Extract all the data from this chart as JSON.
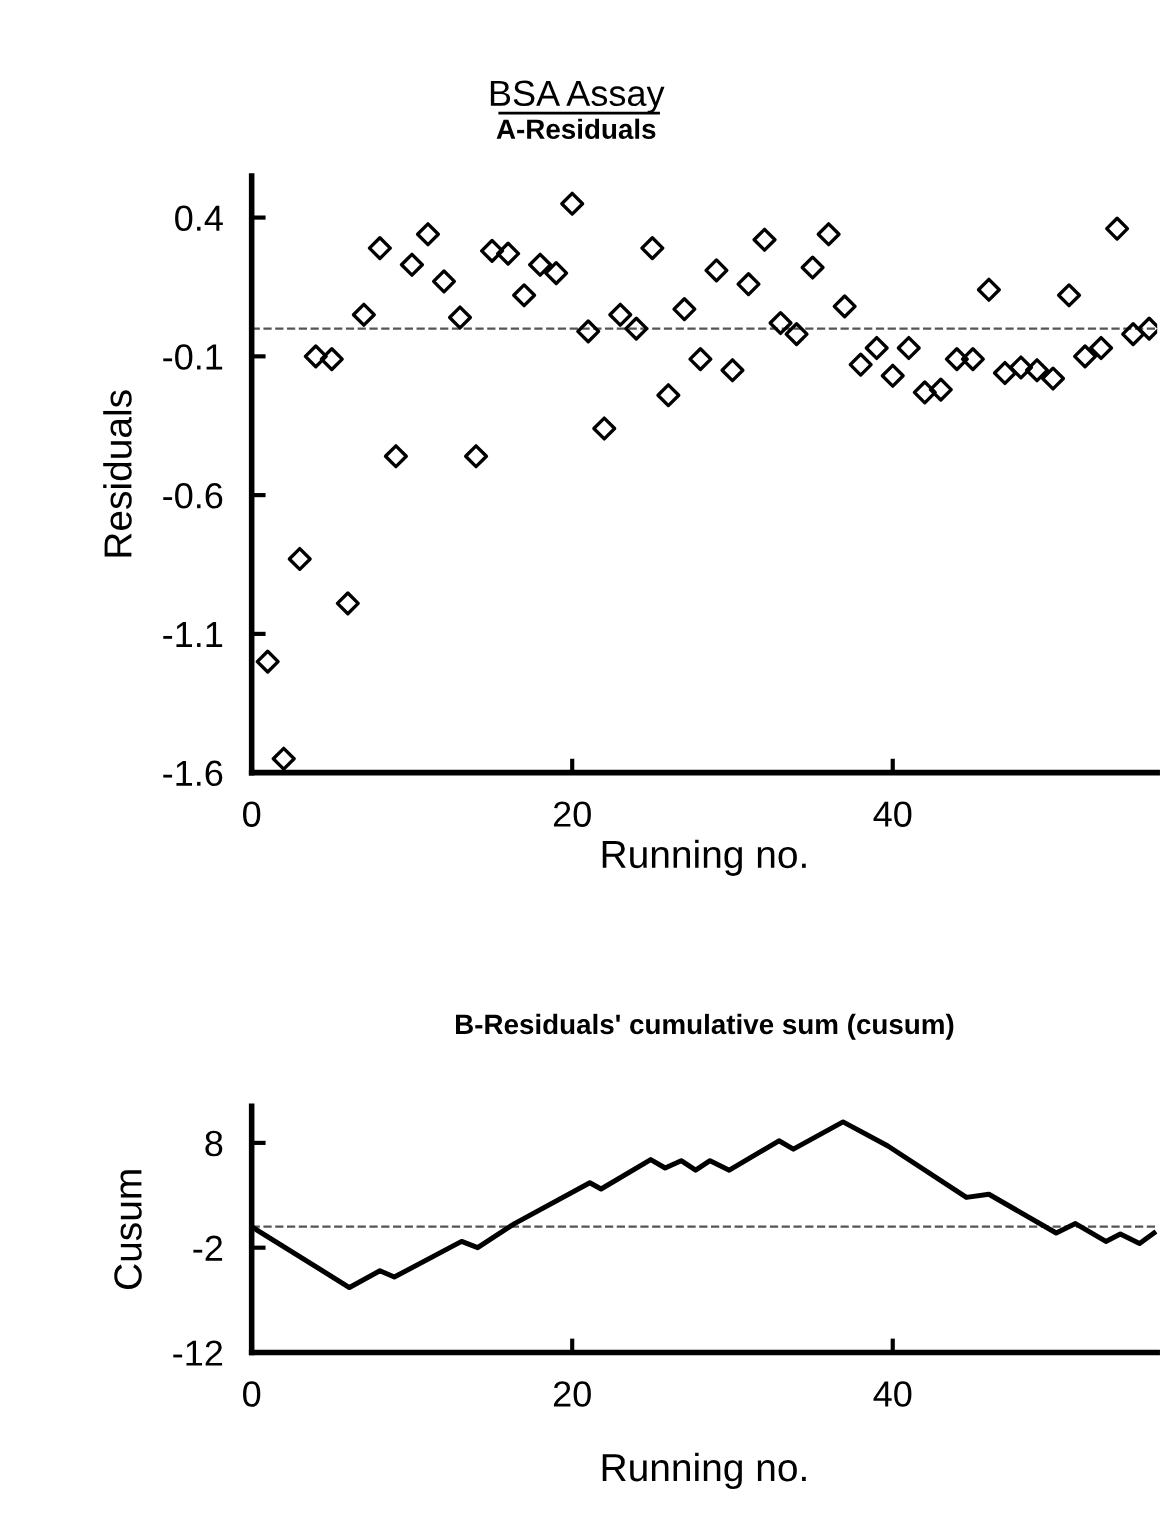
{
  "chart_data": [
    {
      "type": "scatter",
      "title": "BSA Assay",
      "subtitle": "A-Residuals",
      "xlabel": "Running no.",
      "ylabel": "Residuals",
      "x": [
        1,
        2,
        3,
        4,
        5,
        6,
        7,
        8,
        9,
        10,
        11,
        12,
        13,
        14,
        15,
        16,
        17,
        18,
        19,
        20,
        21,
        22,
        23,
        24,
        25,
        26,
        27,
        28,
        29,
        30,
        31,
        32,
        33,
        34,
        35,
        36,
        37,
        38,
        39,
        40,
        41,
        42,
        43,
        44,
        45,
        46,
        47,
        48,
        49,
        50,
        51,
        52,
        53,
        54,
        55,
        56
      ],
      "series": [
        {
          "color": "#000000",
          "values": [
            -1.2,
            -1.55,
            -0.83,
            -0.1,
            -0.11,
            -0.99,
            0.05,
            0.29,
            -0.46,
            0.23,
            0.34,
            0.17,
            0.04,
            -0.46,
            0.28,
            0.27,
            0.12,
            0.23,
            0.2,
            0.45,
            -0.01,
            -0.36,
            0.05,
            0.0,
            0.29,
            -0.24,
            0.07,
            -0.11,
            0.21,
            -0.15,
            0.16,
            0.32,
            0.02,
            -0.02,
            0.22,
            0.34,
            0.08,
            -0.13,
            -0.07,
            -0.17,
            -0.07,
            -0.23,
            -0.22,
            -0.11,
            -0.11,
            0.14,
            -0.16,
            -0.14,
            -0.15,
            -0.18,
            0.12,
            -0.1,
            -0.07,
            0.36,
            -0.02,
            0.0
          ]
        }
      ],
      "marker": "diamond",
      "xlim": [
        0,
        56.5
      ],
      "ylim": [
        -1.6,
        0.55
      ],
      "xticks": [
        0,
        20,
        40
      ],
      "yticks": [
        0.4,
        -0.1,
        -0.6,
        -1.1,
        -1.6
      ],
      "grid": false,
      "legend": false,
      "ref_lines": [
        {
          "axis": "y",
          "value": 0.0,
          "label": null,
          "color": "#555555",
          "line_style": "dashed"
        }
      ]
    },
    {
      "type": "line",
      "title": "B-Residuals' cumulative sum (cusum)",
      "xlabel": "Running no.",
      "ylabel": "Cusum",
      "series": [
        {
          "color": "#000000",
          "x": [
            0,
            6.1,
            8,
            8.9,
            13.1,
            14.1,
            16.4,
            21.1,
            21.8,
            24.9,
            25.8,
            26.8,
            27.7,
            28.6,
            29.8,
            32.9,
            33.8,
            36.9,
            39.7,
            44.6,
            46,
            50.2,
            51.4,
            53.3,
            54.2,
            55.4,
            56.3
          ],
          "values": [
            0,
            -5.8,
            -4.2,
            -4.8,
            -1.4,
            -2,
            0.3,
            4.2,
            3.6,
            6.4,
            5.6,
            6.3,
            5.4,
            6.3,
            5.4,
            8.2,
            7.4,
            10,
            7.7,
            2.8,
            3.1,
            -0.6,
            0.3,
            -1.4,
            -0.7,
            -1.6,
            -0.6
          ]
        }
      ],
      "marker": "none",
      "line_style": "solid",
      "xlim": [
        0,
        56.5
      ],
      "ylim": [
        -12,
        11.5
      ],
      "xticks": [
        0,
        20,
        40
      ],
      "yticks": [
        8,
        -2,
        -12
      ],
      "grid": false,
      "legend": false,
      "ref_lines": [
        {
          "axis": "y",
          "value": 0.0,
          "label": null,
          "color": "#555555",
          "line_style": "dashed"
        }
      ]
    }
  ]
}
